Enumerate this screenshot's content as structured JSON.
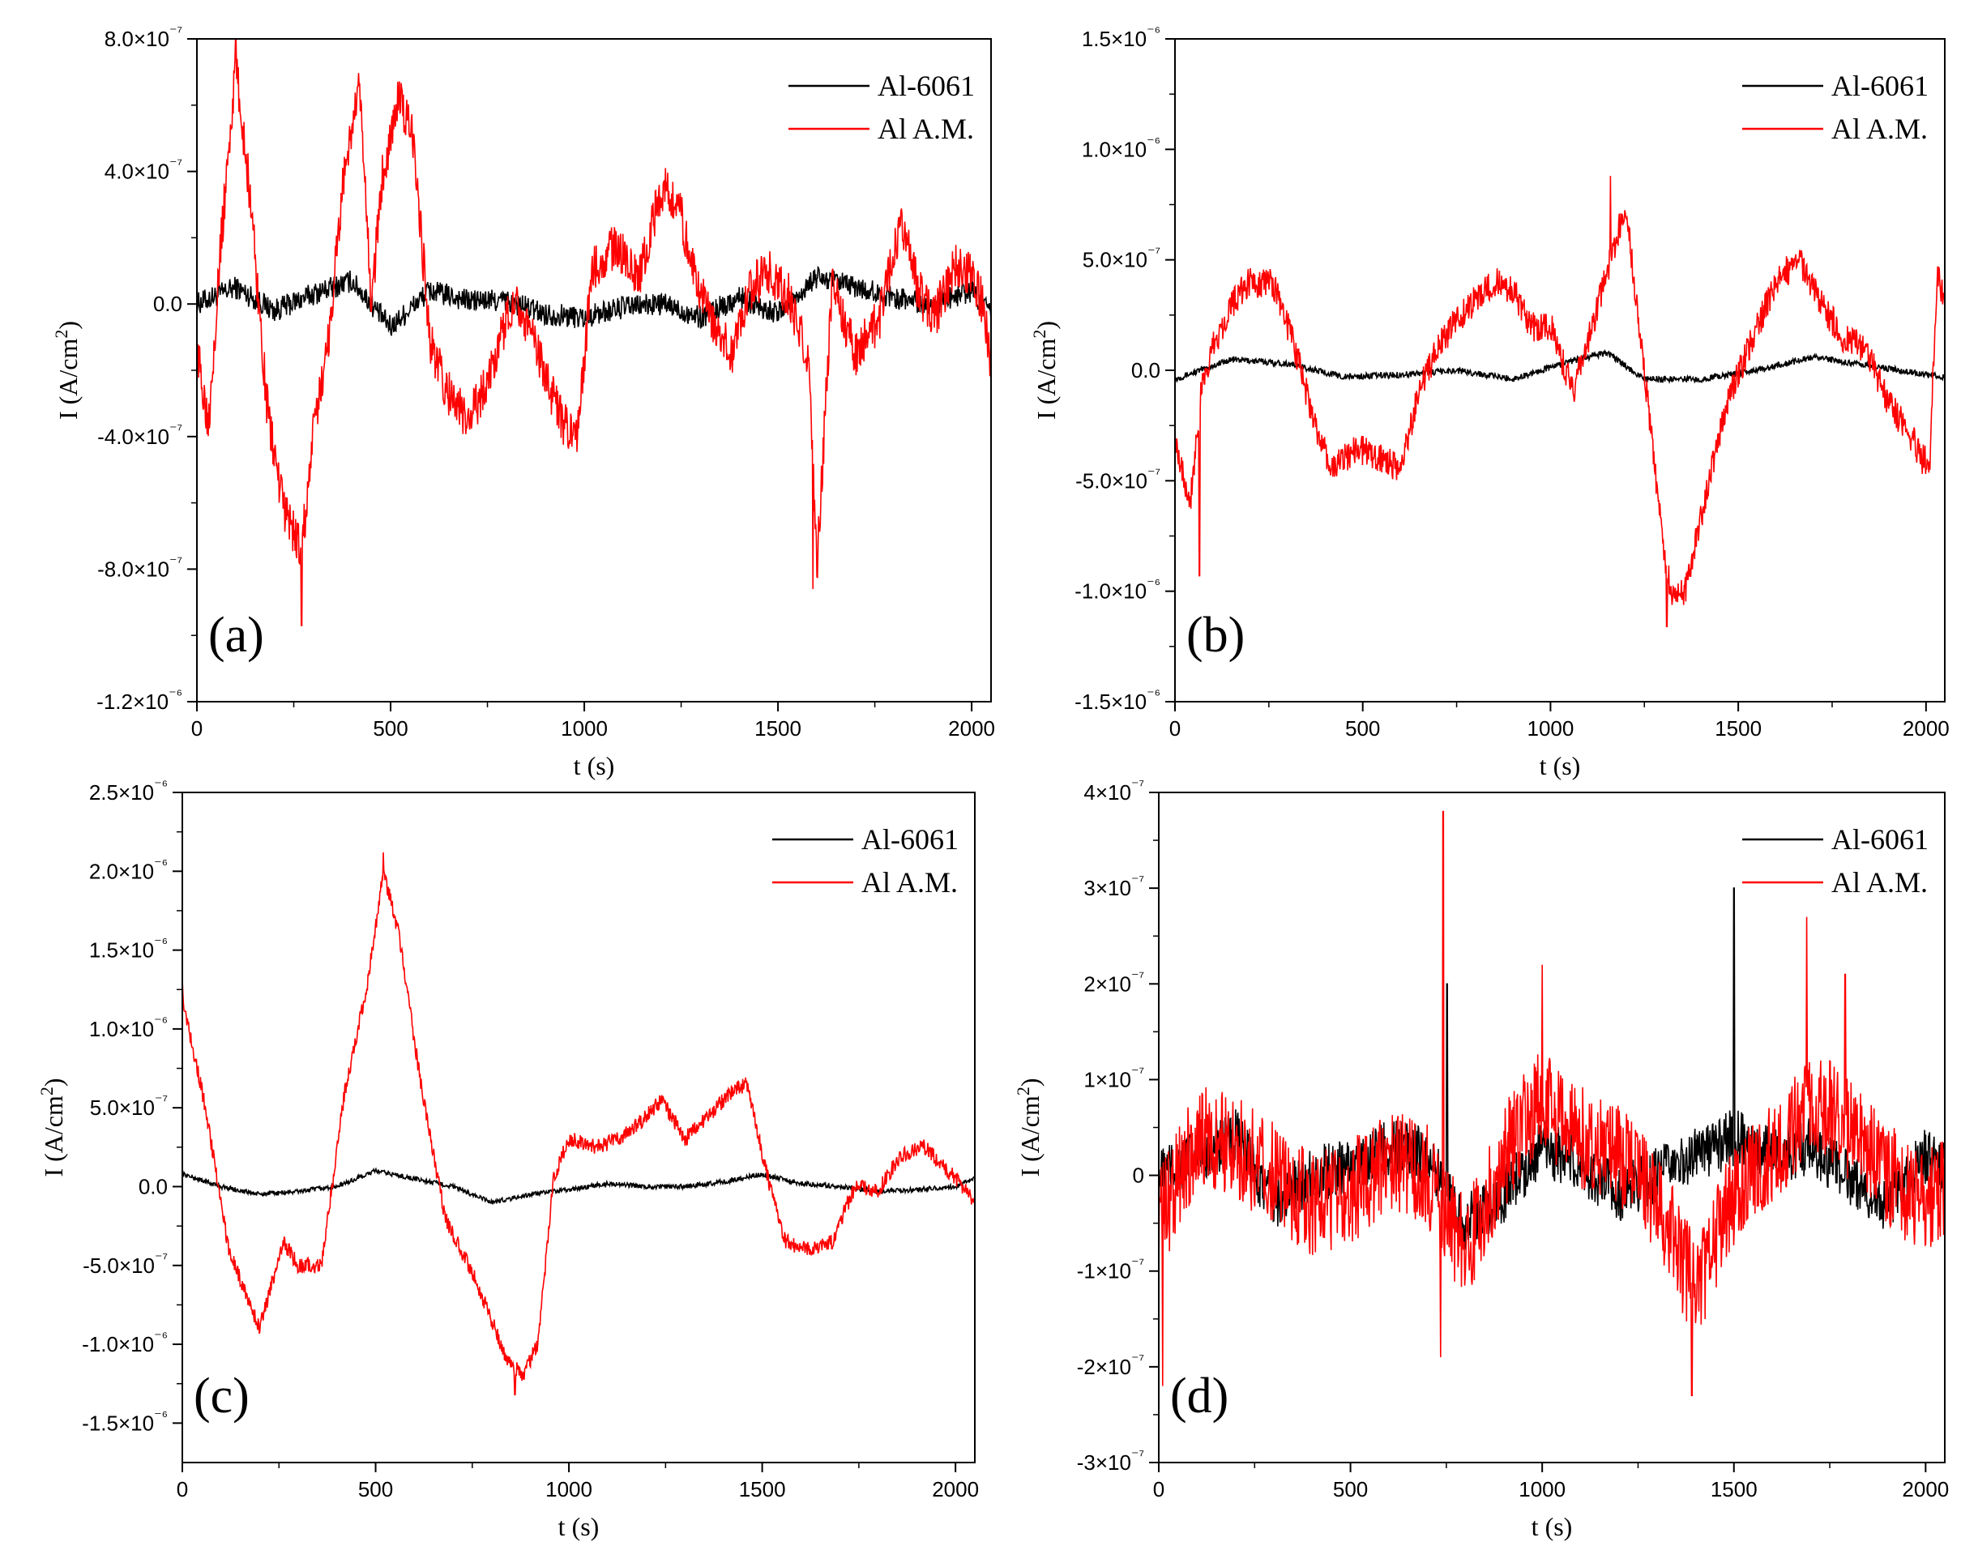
{
  "colors": {
    "al6061": "#000000",
    "alam": "#ff0000"
  },
  "chart_data": [
    {
      "type": "line",
      "panel_label": "(a)",
      "xlabel": "t (s)",
      "ylabel": "I (A/cm²)",
      "xlim": [
        0,
        2050
      ],
      "ylim": [
        -1.2e-06,
        8e-07
      ],
      "xticks": [
        0,
        500,
        1000,
        1500,
        2000
      ],
      "xtick_labels": [
        "0",
        "500",
        "1000",
        "1500",
        "2000"
      ],
      "yticks": [
        -1.2e-06,
        -8e-07,
        -4e-07,
        0,
        4e-07,
        8e-07
      ],
      "ytick_labels": [
        "-1.2×10⁻⁶",
        "-8.0×10⁻⁷",
        "-4.0×10⁻⁷",
        "0.0",
        "4.0×10⁻⁷",
        "8.0×10⁻⁷"
      ],
      "legend": [
        "Al-6061",
        "Al A.M."
      ],
      "legend_position": "top-right",
      "series": [
        {
          "name": "Al-6061",
          "x": [
            0,
            100,
            200,
            300,
            400,
            500,
            600,
            700,
            800,
            900,
            1000,
            1100,
            1200,
            1300,
            1400,
            1500,
            1600,
            1700,
            1800,
            1900,
            2000,
            2050
          ],
          "values": [
            0,
            5e-08,
            -2e-08,
            3e-08,
            7e-08,
            -7e-08,
            4e-08,
            1e-08,
            1e-08,
            -3e-08,
            -4e-08,
            -1e-08,
            0,
            -4e-08,
            2e-08,
            -3e-08,
            8e-08,
            5e-08,
            2e-08,
            0,
            4e-08,
            -3e-08
          ],
          "noise": 3.5e-08
        },
        {
          "name": "Al A.M.",
          "x": [
            0,
            30,
            60,
            100,
            140,
            180,
            220,
            270,
            300,
            340,
            380,
            420,
            450,
            480,
            520,
            560,
            600,
            640,
            700,
            760,
            820,
            880,
            940,
            980,
            1020,
            1080,
            1140,
            1200,
            1240,
            1280,
            1330,
            1380,
            1430,
            1480,
            1530,
            1580,
            1600,
            1640,
            1700,
            1760,
            1820,
            1860,
            1900,
            1960,
            2000,
            2030,
            2050
          ],
          "values": [
            -1.5e-07,
            -3.5e-07,
            1.5e-07,
            7.2e-07,
            3e-07,
            -3e-07,
            -6e-07,
            -7.5e-07,
            -4e-07,
            -1e-07,
            4e-07,
            6.5e-07,
            0,
            4e-07,
            6.2e-07,
            5e-07,
            -1e-07,
            -2.5e-07,
            -3.6e-07,
            -2e-07,
            3e-08,
            -1.5e-07,
            -3.5e-07,
            -4.2e-07,
            1e-07,
            1.8e-07,
            8e-08,
            3.5e-07,
            3.2e-07,
            1e-07,
            -5e-08,
            -1.5e-07,
            5e-08,
            1e-07,
            2e-08,
            -1.8e-07,
            -8e-07,
            6e-08,
            -1.5e-07,
            -5e-08,
            2.5e-07,
            5e-08,
            -5e-08,
            1.2e-07,
            8e-08,
            0,
            -1.8e-07
          ],
          "noise": 7e-08,
          "spikes": [
            [
              270,
              -9.7e-07
            ],
            [
              1590,
              -8.6e-07
            ],
            [
              100,
              8e-07
            ]
          ]
        }
      ]
    },
    {
      "type": "line",
      "panel_label": "(b)",
      "xlabel": "t (s)",
      "ylabel": "I (A/cm²)",
      "xlim": [
        0,
        2050
      ],
      "ylim": [
        -1.5e-06,
        1.5e-06
      ],
      "xticks": [
        0,
        500,
        1000,
        1500,
        2000
      ],
      "xtick_labels": [
        "0",
        "500",
        "1000",
        "1500",
        "2000"
      ],
      "yticks": [
        -1.5e-06,
        -1e-06,
        -5e-07,
        0,
        5e-07,
        1e-06,
        1.5e-06
      ],
      "ytick_labels": [
        "-1.5×10⁻⁶",
        "-1.0×10⁻⁶",
        "-5.0×10⁻⁷",
        "0.0",
        "5.0×10⁻⁷",
        "1.0×10⁻⁶",
        "1.5×10⁻⁶"
      ],
      "legend": [
        "Al-6061",
        "Al A.M."
      ],
      "legend_position": "top-right",
      "series": [
        {
          "name": "Al-6061",
          "x": [
            0,
            150,
            300,
            450,
            600,
            750,
            900,
            1050,
            1150,
            1250,
            1400,
            1550,
            1700,
            1850,
            2000,
            2050
          ],
          "values": [
            -4e-08,
            5e-08,
            3e-08,
            -3e-08,
            -2e-08,
            0,
            -4e-08,
            4e-08,
            8e-08,
            -4e-08,
            -4e-08,
            0,
            6e-08,
            2e-08,
            -2e-08,
            -3e-08
          ],
          "noise": 1.4e-08
        },
        {
          "name": "Al A.M.",
          "x": [
            0,
            40,
            70,
            100,
            150,
            200,
            260,
            320,
            380,
            420,
            480,
            550,
            600,
            650,
            700,
            760,
            820,
            860,
            900,
            950,
            1000,
            1060,
            1110,
            1160,
            1200,
            1250,
            1300,
            1320,
            1360,
            1420,
            1480,
            1540,
            1600,
            1660,
            1720,
            1780,
            1840,
            1900,
            1960,
            1990,
            2010,
            2030,
            2050
          ],
          "values": [
            -3e-07,
            -6e-07,
            -1e-07,
            1e-07,
            3e-07,
            4e-07,
            4e-07,
            1e-07,
            -3e-07,
            -4.5e-07,
            -3.5e-07,
            -4e-07,
            -4.5e-07,
            -1e-07,
            1e-07,
            2.5e-07,
            3.5e-07,
            4e-07,
            3.5e-07,
            2e-07,
            2e-07,
            -1e-07,
            2e-07,
            5e-07,
            7.5e-07,
            0,
            -8e-07,
            -1e-06,
            -1e-06,
            -5e-07,
            -1e-07,
            1.5e-07,
            4e-07,
            5e-07,
            3e-07,
            1.5e-07,
            1e-07,
            -1.5e-07,
            -3e-07,
            -4e-07,
            -4e-07,
            4.5e-07,
            3e-07
          ],
          "noise": 7e-08,
          "spikes": [
            [
              65,
              -9.3e-07
            ],
            [
              1310,
              -1.16e-06
            ],
            [
              1160,
              8.8e-07
            ]
          ]
        }
      ]
    },
    {
      "type": "line",
      "panel_label": "(c)",
      "xlabel": "t (s)",
      "ylabel": "I (A/cm²)",
      "xlim": [
        0,
        2050
      ],
      "ylim": [
        -1.75e-06,
        2.5e-06
      ],
      "xticks": [
        0,
        500,
        1000,
        1500,
        2000
      ],
      "xtick_labels": [
        "0",
        "500",
        "1000",
        "1500",
        "2000"
      ],
      "yticks": [
        -1.5e-06,
        -1e-06,
        -5e-07,
        0,
        5e-07,
        1e-06,
        1.5e-06,
        2e-06,
        2.5e-06
      ],
      "ytick_labels": [
        "-1.5×10⁻⁶",
        "-1.0×10⁻⁶",
        "-5.0×10⁻⁷",
        "0.0",
        "5.0×10⁻⁷",
        "1.0×10⁻⁶",
        "1.5×10⁻⁶",
        "2.0×10⁻⁶",
        "2.5×10⁻⁶"
      ],
      "legend": [
        "Al-6061",
        "Al A.M."
      ],
      "legend_position": "top-right",
      "series": [
        {
          "name": "Al-6061",
          "x": [
            0,
            100,
            200,
            300,
            400,
            500,
            600,
            700,
            800,
            900,
            1000,
            1100,
            1200,
            1300,
            1400,
            1500,
            1600,
            1700,
            1800,
            1900,
            2000,
            2050
          ],
          "values": [
            8e-08,
            0,
            -5e-08,
            -3e-08,
            0,
            1e-07,
            5e-08,
            0,
            -1e-07,
            -5e-08,
            -2e-08,
            2e-08,
            0,
            0,
            3e-08,
            8e-08,
            2e-08,
            0,
            -3e-08,
            -2e-08,
            0,
            5e-08
          ],
          "noise": 1.5e-08
        },
        {
          "name": "Al A.M.",
          "x": [
            0,
            60,
            120,
            200,
            260,
            300,
            360,
            420,
            480,
            520,
            560,
            620,
            680,
            760,
            840,
            880,
            920,
            960,
            1000,
            1080,
            1160,
            1240,
            1300,
            1360,
            1420,
            1460,
            1520,
            1560,
            1620,
            1680,
            1740,
            1800,
            1860,
            1920,
            1980,
            2020,
            2050
          ],
          "values": [
            1.2e-06,
            5e-07,
            -4e-07,
            -9e-07,
            -3.5e-07,
            -5e-07,
            -5e-07,
            6e-07,
            1.3e-06,
            2e-06,
            1.6e-06,
            6e-07,
            -2e-07,
            -6e-07,
            -1.1e-06,
            -1.2e-06,
            -1e-06,
            5e-08,
            3e-07,
            2.5e-07,
            3.5e-07,
            5.5e-07,
            3e-07,
            4.5e-07,
            6e-07,
            6.5e-07,
            0,
            -3.5e-07,
            -4e-07,
            -3.5e-07,
            0,
            -2e-08,
            2e-07,
            2.5e-07,
            1e-07,
            0,
            -1e-07
          ],
          "noise": 5e-08,
          "spikes": [
            [
              520,
              2.12e-06
            ],
            [
              860,
              -1.32e-06
            ],
            [
              0,
              1.32e-06
            ]
          ]
        }
      ]
    },
    {
      "type": "line",
      "panel_label": "(d)",
      "xlabel": "t (s)",
      "ylabel": "I (A/cm²)",
      "xlim": [
        0,
        2050
      ],
      "ylim": [
        -3e-07,
        4e-07
      ],
      "xticks": [
        0,
        500,
        1000,
        1500,
        2000
      ],
      "xtick_labels": [
        "0",
        "500",
        "1000",
        "1500",
        "2000"
      ],
      "yticks": [
        -3e-07,
        -2e-07,
        -1e-07,
        0,
        1e-07,
        2e-07,
        3e-07,
        4e-07
      ],
      "ytick_labels": [
        "-3×10⁻⁷",
        "-2×10⁻⁷",
        "-1×10⁻⁷",
        "0",
        "1×10⁻⁷",
        "2×10⁻⁷",
        "3×10⁻⁷",
        "4×10⁻⁷"
      ],
      "legend": [
        "Al-6061",
        "Al A.M."
      ],
      "legend_position": "top-right",
      "series": [
        {
          "name": "Al-6061",
          "x": [
            0,
            100,
            200,
            300,
            400,
            500,
            600,
            700,
            800,
            900,
            1000,
            1100,
            1200,
            1300,
            1400,
            1500,
            1600,
            1700,
            1800,
            1900,
            2000,
            2050
          ],
          "values": [
            0,
            2e-08,
            4e-08,
            -3e-08,
            0,
            1e-08,
            3e-08,
            2e-08,
            -5e-08,
            -2e-08,
            3e-08,
            1e-08,
            -2e-08,
            0,
            2e-08,
            4e-08,
            2e-08,
            3e-08,
            0,
            -3e-08,
            2e-08,
            1e-08
          ],
          "noise": 3e-08,
          "spikes": [
            [
              752,
              2e-07
            ],
            [
              1500,
              3e-07
            ]
          ]
        },
        {
          "name": "Al A.M.",
          "x": [
            0,
            100,
            200,
            300,
            400,
            500,
            600,
            700,
            800,
            900,
            1000,
            1100,
            1200,
            1300,
            1400,
            1500,
            1600,
            1700,
            1800,
            1900,
            2000,
            2050
          ],
          "values": [
            -5e-08,
            4e-08,
            3e-08,
            0,
            -3e-08,
            -2e-08,
            2e-08,
            0,
            -8e-08,
            2e-08,
            8e-08,
            4e-08,
            2e-08,
            -3e-08,
            -1.2e-07,
            -2e-08,
            2e-08,
            8e-08,
            5e-08,
            0,
            -3e-08,
            -1e-08
          ],
          "noise": 5.5e-08,
          "spikes": [
            [
              742,
              3.8e-07
            ],
            [
              735,
              -1.9e-07
            ],
            [
              10,
              -2.2e-07
            ],
            [
              1000,
              2.2e-07
            ],
            [
              1690,
              2.7e-07
            ],
            [
              1790,
              2.1e-07
            ],
            [
              1390,
              -2.3e-07
            ]
          ]
        }
      ]
    }
  ]
}
